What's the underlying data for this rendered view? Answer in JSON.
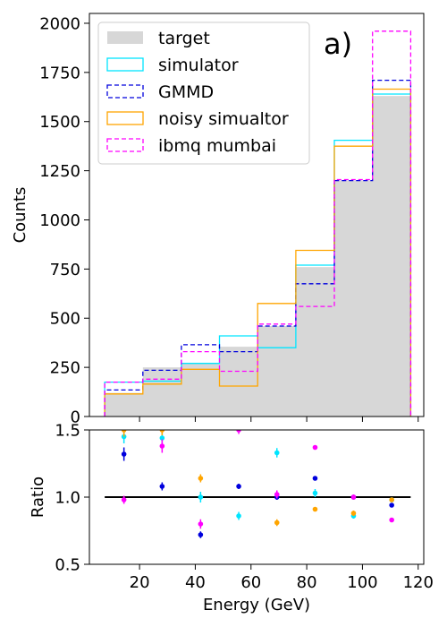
{
  "chart_data": [
    {
      "type": "histogram",
      "panel_label": "a)",
      "xlabel": "",
      "ylabel": "Counts",
      "xlim": [
        2,
        122
      ],
      "ylim": [
        0,
        2050
      ],
      "yticks": [
        0,
        250,
        500,
        750,
        1000,
        1250,
        1500,
        1750,
        2000
      ],
      "bin_edges": [
        7.5,
        21.2,
        35,
        48.7,
        62.4,
        76.1,
        89.9,
        103.6,
        117.3
      ],
      "legend_position": "upper-left",
      "series": [
        {
          "name": "target",
          "style": "filled",
          "color": "#d7d7d7",
          "values": [
            120,
            250,
            270,
            355,
            460,
            760,
            1200,
            1630
          ]
        },
        {
          "name": "simulator",
          "style": "solid",
          "color": "#00e5ff",
          "values": [
            175,
            180,
            270,
            410,
            350,
            770,
            1405,
            1640
          ]
        },
        {
          "name": "GMMD",
          "style": "dashed",
          "color": "#0000dd",
          "values": [
            135,
            235,
            365,
            330,
            460,
            675,
            1200,
            1710
          ]
        },
        {
          "name": "noisy simualtor",
          "style": "solid",
          "color": "#ffa500",
          "values": [
            115,
            165,
            240,
            155,
            575,
            845,
            1375,
            1665
          ]
        },
        {
          "name": "ibmq mumbai",
          "style": "dashed",
          "color": "#ff00ff",
          "values": [
            175,
            190,
            330,
            230,
            470,
            560,
            1205,
            1960
          ]
        }
      ]
    },
    {
      "type": "scatter",
      "xlabel": "Energy (GeV)",
      "ylabel": "Ratio",
      "xlim": [
        2,
        122
      ],
      "ylim": [
        0.5,
        1.5
      ],
      "xticks": [
        20,
        40,
        60,
        80,
        100,
        120
      ],
      "yticks": [
        0.5,
        1.0,
        1.5
      ],
      "ytick_labels": [
        "0.5",
        "1.0",
        "1.5"
      ],
      "reference_line": {
        "y": 1.0,
        "x": [
          7.5,
          117.3
        ]
      },
      "series": [
        {
          "name": "simulator",
          "color": "#00e5ff",
          "x": [
            14.4,
            28.1,
            41.9,
            55.6,
            69.3,
            83.0,
            96.8,
            110.5
          ],
          "y": [
            1.45,
            1.44,
            1.0,
            0.86,
            1.33,
            1.03,
            0.86,
            0.98
          ],
          "err": [
            0.05,
            0.04,
            0.04,
            0.03,
            0.035,
            0.03,
            0.02,
            0.015
          ]
        },
        {
          "name": "GMMD",
          "color": "#0000dd",
          "x": [
            14.4,
            28.1,
            41.9,
            55.6,
            69.3,
            83.0,
            96.8,
            110.5
          ],
          "y": [
            1.32,
            1.08,
            0.72,
            1.08,
            1.0,
            1.14,
            1.0,
            0.94
          ],
          "err": [
            0.05,
            0.03,
            0.025,
            0.02,
            0.02,
            0.015,
            0.012,
            0.01
          ]
        },
        {
          "name": "noisy simualtor",
          "color": "#ffa500",
          "x": [
            14.4,
            28.1,
            41.9,
            55.6,
            69.3,
            83.0,
            96.8,
            110.5
          ],
          "y": [
            1.5,
            1.5,
            1.14,
            1.6,
            0.81,
            0.91,
            0.88,
            0.98
          ],
          "err": [
            0.05,
            0.04,
            0.03,
            0.03,
            0.025,
            0.015,
            0.02,
            0.012
          ]
        },
        {
          "name": "ibmq mumbai",
          "color": "#ff00ff",
          "x": [
            14.4,
            28.1,
            41.9,
            55.6,
            69.3,
            83.0,
            96.8,
            110.5
          ],
          "y": [
            0.98,
            1.38,
            0.8,
            1.5,
            1.02,
            1.37,
            1.0,
            0.83
          ],
          "err": [
            0.03,
            0.05,
            0.035,
            0.03,
            0.03,
            0.015,
            0.02,
            0.01
          ]
        }
      ]
    }
  ]
}
